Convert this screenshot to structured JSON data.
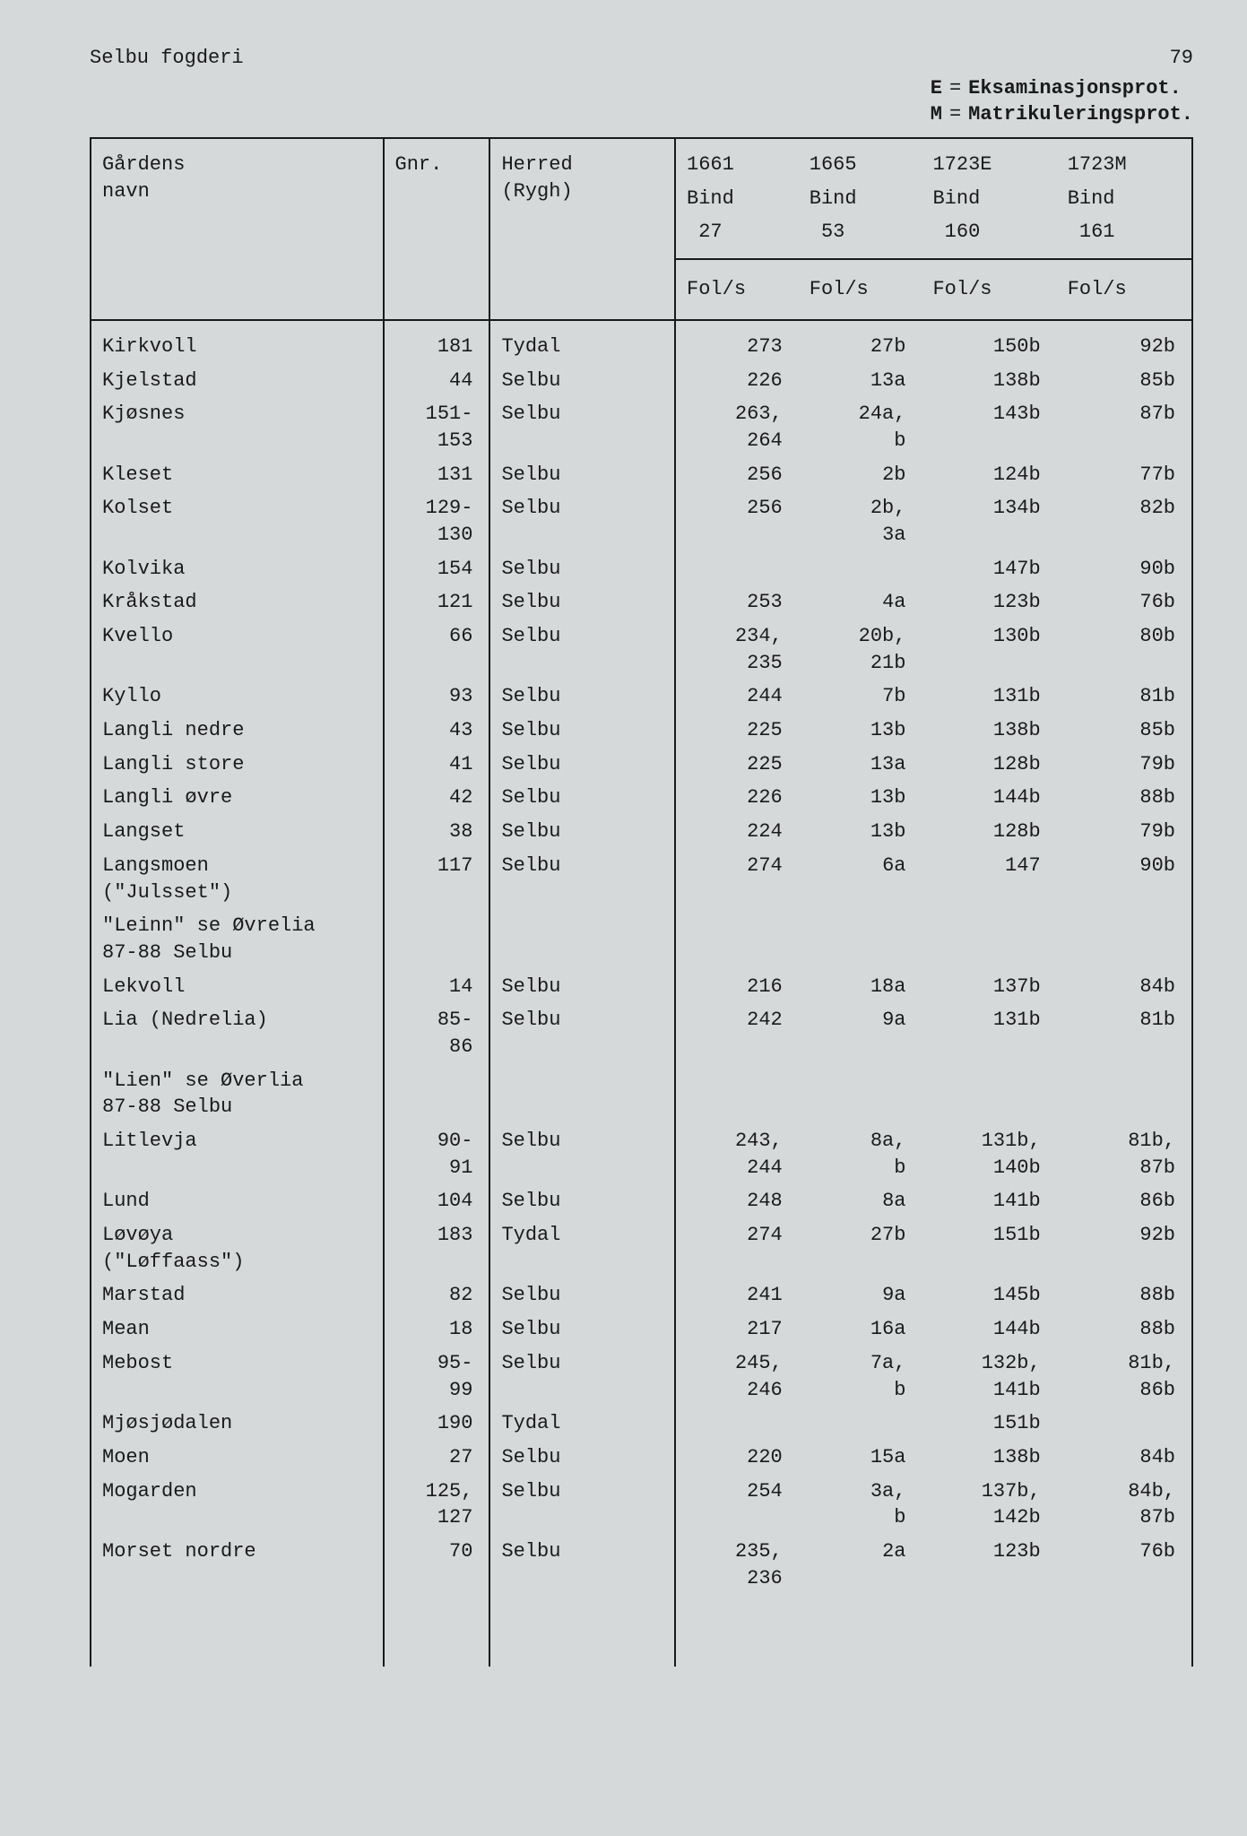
{
  "page_number": "79",
  "title": "Selbu fogderi",
  "legend": {
    "E": "Eksaminasjonsprot.",
    "M": "Matrikuleringsprot."
  },
  "columns": {
    "navn": "Gårdens\nnavn",
    "gnr": "Gnr.",
    "herred": "Herred\n(Rygh)",
    "c1661": {
      "l1": "1661",
      "l2": "Bind",
      "l3": "27"
    },
    "c1665": {
      "l1": "1665",
      "l2": "Bind",
      "l3": "53"
    },
    "c1723E": {
      "l1": "1723E",
      "l2": "Bind",
      "l3": "160"
    },
    "c1723M": {
      "l1": "1723M",
      "l2": "Bind",
      "l3": "161"
    },
    "fols": "Fol/s"
  },
  "rows": [
    {
      "navn": "Kirkvoll",
      "gnr": "181",
      "herred": "Tydal",
      "c1": "273",
      "c2": "27b",
      "c3": "150b",
      "c4": "92b"
    },
    {
      "navn": "Kjelstad",
      "gnr": "44",
      "herred": "Selbu",
      "c1": "226",
      "c2": "13a",
      "c3": "138b",
      "c4": "85b"
    },
    {
      "navn": "Kjøsnes",
      "gnr": "151-\n153",
      "herred": "Selbu",
      "c1": "263,\n264",
      "c2": "24a,\nb",
      "c3": "143b",
      "c4": "87b"
    },
    {
      "navn": "Kleset",
      "gnr": "131",
      "herred": "Selbu",
      "c1": "256",
      "c2": "2b",
      "c3": "124b",
      "c4": "77b"
    },
    {
      "navn": "Kolset",
      "gnr": "129-\n130",
      "herred": "Selbu",
      "c1": "256",
      "c2": "2b,\n3a",
      "c3": "134b",
      "c4": "82b"
    },
    {
      "navn": "Kolvika",
      "gnr": "154",
      "herred": "Selbu",
      "c1": "",
      "c2": "",
      "c3": "147b",
      "c4": "90b"
    },
    {
      "navn": "Kråkstad",
      "gnr": "121",
      "herred": "Selbu",
      "c1": "253",
      "c2": "4a",
      "c3": "123b",
      "c4": "76b"
    },
    {
      "navn": "Kvello",
      "gnr": "66",
      "herred": "Selbu",
      "c1": "234,\n235",
      "c2": "20b,\n21b",
      "c3": "130b",
      "c4": "80b"
    },
    {
      "navn": "Kyllo",
      "gnr": "93",
      "herred": "Selbu",
      "c1": "244",
      "c2": "7b",
      "c3": "131b",
      "c4": "81b"
    },
    {
      "navn": "Langli nedre",
      "gnr": "43",
      "herred": "Selbu",
      "c1": "225",
      "c2": "13b",
      "c3": "138b",
      "c4": "85b"
    },
    {
      "navn": "Langli store",
      "gnr": "41",
      "herred": "Selbu",
      "c1": "225",
      "c2": "13a",
      "c3": "128b",
      "c4": "79b"
    },
    {
      "navn": "Langli øvre",
      "gnr": "42",
      "herred": "Selbu",
      "c1": "226",
      "c2": "13b",
      "c3": "144b",
      "c4": "88b"
    },
    {
      "navn": "Langset",
      "gnr": "38",
      "herred": "Selbu",
      "c1": "224",
      "c2": "13b",
      "c3": "128b",
      "c4": "79b"
    },
    {
      "navn": "Langsmoen\n(\"Julsset\")",
      "gnr": "117",
      "herred": "Selbu",
      "c1": "274",
      "c2": "6a",
      "c3": "147",
      "c4": "90b"
    },
    {
      "navn": "\"Leinn\" se Øvrelia\n87-88 Selbu",
      "gnr": "",
      "herred": "",
      "c1": "",
      "c2": "",
      "c3": "",
      "c4": ""
    },
    {
      "navn": "Lekvoll",
      "gnr": "14",
      "herred": "Selbu",
      "c1": "216",
      "c2": "18a",
      "c3": "137b",
      "c4": "84b"
    },
    {
      "navn": "Lia (Nedrelia)",
      "gnr": "85-\n86",
      "herred": "Selbu",
      "c1": "242",
      "c2": "9a",
      "c3": "131b",
      "c4": "81b"
    },
    {
      "navn": "\"Lien\" se Øverlia\n87-88 Selbu",
      "gnr": "",
      "herred": "",
      "c1": "",
      "c2": "",
      "c3": "",
      "c4": ""
    },
    {
      "navn": "Litlevja",
      "gnr": "90-\n91",
      "herred": "Selbu",
      "c1": "243,\n244",
      "c2": "8a,\nb",
      "c3": "131b,\n140b",
      "c4": "81b,\n87b"
    },
    {
      "navn": "Lund",
      "gnr": "104",
      "herred": "Selbu",
      "c1": "248",
      "c2": "8a",
      "c3": "141b",
      "c4": "86b"
    },
    {
      "navn": "Løvøya\n(\"Løffaass\")",
      "gnr": "183",
      "herred": "Tydal",
      "c1": "274",
      "c2": "27b",
      "c3": "151b",
      "c4": "92b"
    },
    {
      "navn": "Marstad",
      "gnr": "82",
      "herred": "Selbu",
      "c1": "241",
      "c2": "9a",
      "c3": "145b",
      "c4": "88b"
    },
    {
      "navn": "Mean",
      "gnr": "18",
      "herred": "Selbu",
      "c1": "217",
      "c2": "16a",
      "c3": "144b",
      "c4": "88b"
    },
    {
      "navn": "Mebost",
      "gnr": "95-\n99",
      "herred": "Selbu",
      "c1": "245,\n246",
      "c2": "7a,\nb",
      "c3": "132b,\n141b",
      "c4": "81b,\n86b"
    },
    {
      "navn": "Mjøsjødalen",
      "gnr": "190",
      "herred": "Tydal",
      "c1": "",
      "c2": "",
      "c3": "151b",
      "c4": ""
    },
    {
      "navn": "Moen",
      "gnr": "27",
      "herred": "Selbu",
      "c1": "220",
      "c2": "15a",
      "c3": "138b",
      "c4": "84b"
    },
    {
      "navn": "Mogarden",
      "gnr": "125,\n127",
      "herred": "Selbu",
      "c1": "254",
      "c2": "3a,\nb",
      "c3": "137b,\n142b",
      "c4": "84b,\n87b"
    },
    {
      "navn": "Morset nordre",
      "gnr": "70",
      "herred": "Selbu",
      "c1": "235,\n236",
      "c2": "2a",
      "c3": "123b",
      "c4": "76b"
    }
  ]
}
